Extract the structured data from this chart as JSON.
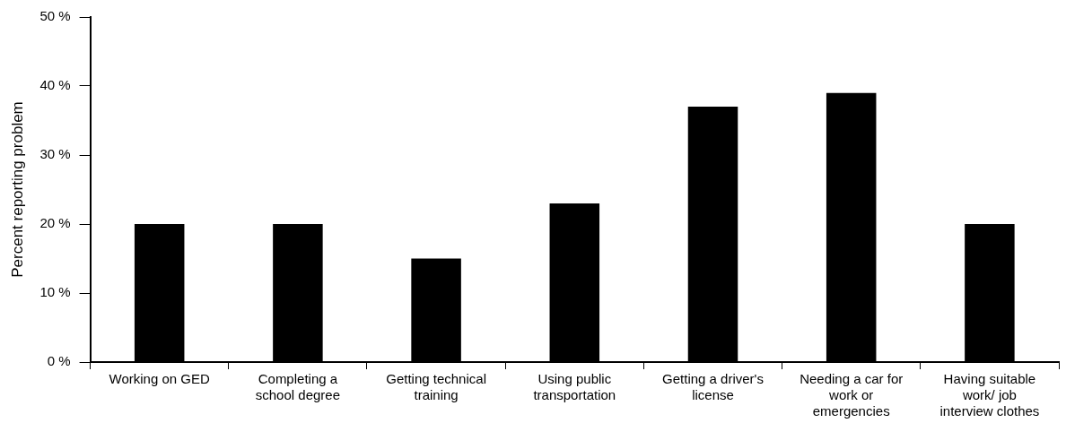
{
  "chart_data": {
    "type": "bar",
    "ylabel": "Percent reporting problem",
    "categories": [
      "Working on GED",
      "Completing a school degree",
      "Getting technical training",
      "Using public transportation",
      "Getting a driver's license",
      "Needing a car for work or emergencies",
      "Having suitable work/ job interview clothes"
    ],
    "values": [
      20,
      20,
      15,
      23,
      37,
      39,
      20
    ],
    "color": "#000000",
    "ylim": [
      0,
      50
    ],
    "yticks": [
      {
        "value": 0,
        "label": "0 %"
      },
      {
        "value": 10,
        "label": "10 %"
      },
      {
        "value": 20,
        "label": "20 %"
      },
      {
        "value": 30,
        "label": "30 %"
      },
      {
        "value": 40,
        "label": "40 %"
      },
      {
        "value": 50,
        "label": "50 %"
      }
    ],
    "grid": false,
    "legend": false
  }
}
